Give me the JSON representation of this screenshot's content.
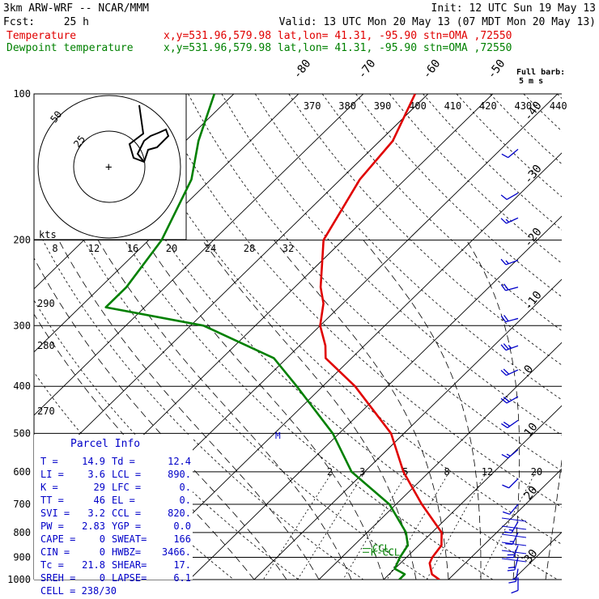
{
  "header": {
    "title": "3km ARW-WRF -- NCAR/MMM",
    "init": "Init: 12 UTC Sun 19 May 13",
    "fcst_label": "Fcst:",
    "fcst_value": "25 h",
    "valid": "Valid: 13 UTC Mon 20 May 13 (07 MDT Mon 20 May 13)",
    "temp_legend": "Temperature",
    "dew_legend": "Dewpoint temperature",
    "loc_info": "x,y=531.96,579.98   lat,lon= 41.31, -95.90  stn=OMA ,72550",
    "barb_note_1": "Full barb:",
    "barb_note_2": "5 m s"
  },
  "colors": {
    "temperature": "#e00000",
    "dewpoint": "#008000",
    "wind": "#0000c8",
    "parcel_text": "#0000c8",
    "ccl_marker": "#008000",
    "lines": "#000000"
  },
  "chart_data": {
    "type": "line",
    "diagram": "skew-T log-p",
    "pressure_levels": [
      100,
      200,
      300,
      400,
      500,
      600,
      700,
      800,
      900,
      1000
    ],
    "isotherm_labels": [
      -80,
      -70,
      -60,
      -50,
      -40,
      -30,
      -20,
      -10,
      0,
      10,
      20,
      30,
      40
    ],
    "theta_labels": [
      270,
      280,
      290,
      370,
      380,
      390,
      400,
      410,
      420,
      430,
      440
    ],
    "mixing_ratio_labels": [
      "2",
      "3",
      "5",
      "8",
      "12",
      "20"
    ],
    "hodograph": {
      "units": "kts",
      "ring_labels": [
        25,
        50
      ],
      "speed_scale": [
        8,
        12,
        16,
        20,
        24,
        28,
        32
      ]
    },
    "series": [
      {
        "name": "Temperature",
        "points": [
          {
            "p": 1000,
            "t": 18.6
          },
          {
            "p": 975,
            "t": 16.6
          },
          {
            "p": 925,
            "t": 14.5
          },
          {
            "p": 900,
            "t": 14.0
          },
          {
            "p": 850,
            "t": 13.5
          },
          {
            "p": 800,
            "t": 11.5
          },
          {
            "p": 700,
            "t": 4.0
          },
          {
            "p": 600,
            "t": -4.0
          },
          {
            "p": 500,
            "t": -12.0
          },
          {
            "p": 400,
            "t": -25.0
          },
          {
            "p": 350,
            "t": -34.0
          },
          {
            "p": 330,
            "t": -36.0
          },
          {
            "p": 300,
            "t": -40.0
          },
          {
            "p": 270,
            "t": -43.0
          },
          {
            "p": 250,
            "t": -46.0
          },
          {
            "p": 200,
            "t": -53.0
          },
          {
            "p": 150,
            "t": -57.0
          },
          {
            "p": 125,
            "t": -58.0
          },
          {
            "p": 100,
            "t": -62.0
          }
        ]
      },
      {
        "name": "Dewpoint temperature",
        "points": [
          {
            "p": 1000,
            "t": 12.4
          },
          {
            "p": 975,
            "t": 12.4
          },
          {
            "p": 950,
            "t": 10.0
          },
          {
            "p": 900,
            "t": 9.0
          },
          {
            "p": 850,
            "t": 8.3
          },
          {
            "p": 800,
            "t": 6.0
          },
          {
            "p": 700,
            "t": -1.0
          },
          {
            "p": 600,
            "t": -12.0
          },
          {
            "p": 500,
            "t": -21.0
          },
          {
            "p": 400,
            "t": -34.0
          },
          {
            "p": 350,
            "t": -42.0
          },
          {
            "p": 300,
            "t": -58.0
          },
          {
            "p": 275,
            "t": -76.0
          },
          {
            "p": 250,
            "t": -76.0
          },
          {
            "p": 200,
            "t": -78.0
          },
          {
            "p": 150,
            "t": -83.0
          },
          {
            "p": 125,
            "t": -88.0
          },
          {
            "p": 100,
            "t": -93.0
          }
        ]
      }
    ],
    "ccl_pressure": 820,
    "lcl_pressure": 890,
    "k_ccl_label": "K-CCL",
    "ccl_label": "CCL",
    "m_marker_label": "M",
    "wind_barbs": [
      {
        "p": 130,
        "spd": 10,
        "dir": 230
      },
      {
        "p": 160,
        "spd": 12,
        "dir": 240
      },
      {
        "p": 180,
        "spd": 14,
        "dir": 245
      },
      {
        "p": 220,
        "spd": 16,
        "dir": 250
      },
      {
        "p": 250,
        "spd": 20,
        "dir": 255
      },
      {
        "p": 290,
        "spd": 22,
        "dir": 255
      },
      {
        "p": 330,
        "spd": 24,
        "dir": 250
      },
      {
        "p": 370,
        "spd": 22,
        "dir": 245
      },
      {
        "p": 420,
        "spd": 20,
        "dir": 240
      },
      {
        "p": 470,
        "spd": 18,
        "dir": 235
      },
      {
        "p": 540,
        "spd": 15,
        "dir": 230
      },
      {
        "p": 620,
        "spd": 12,
        "dir": 225
      },
      {
        "p": 700,
        "spd": 12,
        "dir": 220
      },
      {
        "p": 760,
        "spd": 14,
        "dir": 210
      },
      {
        "p": 800,
        "spd": 16,
        "dir": 205
      },
      {
        "p": 850,
        "spd": 18,
        "dir": 200
      },
      {
        "p": 900,
        "spd": 18,
        "dir": 195
      },
      {
        "p": 950,
        "spd": 16,
        "dir": 190
      },
      {
        "p": 990,
        "spd": 10,
        "dir": 180
      }
    ]
  },
  "parcel_info": {
    "title": "Parcel Info",
    "rows": [
      [
        "T   =",
        "14.9",
        "Td  =",
        "12.4"
      ],
      [
        "LI  =",
        "3.6",
        "LCL =",
        "890."
      ],
      [
        "K   =",
        "29",
        "LFC =",
        "0."
      ],
      [
        "TT  =",
        "46",
        "EL  =",
        "0."
      ],
      [
        "SVI =",
        "3.2",
        "CCL =",
        "820."
      ],
      [
        "PW  =",
        "2.83",
        "YGP =",
        "0.0"
      ],
      [
        "CAPE =",
        "0",
        "SWEAT=",
        "166"
      ],
      [
        "CIN  =",
        "0",
        "HWBZ=",
        "3466."
      ],
      [
        "Tc   =",
        "21.8",
        "SHEAR=",
        "17."
      ],
      [
        "SREH =",
        "0",
        "LAPSE=",
        "6.1"
      ]
    ],
    "cell": "CELL = 238/30"
  }
}
